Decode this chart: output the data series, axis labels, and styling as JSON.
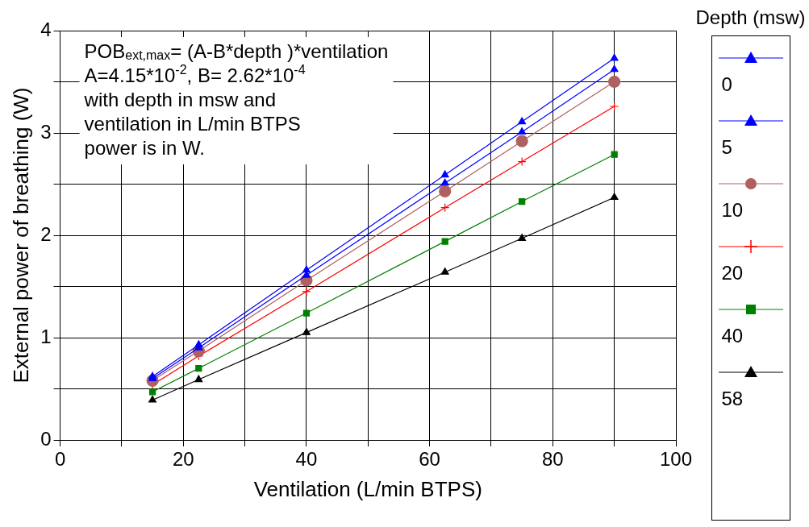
{
  "chart_data": {
    "type": "line",
    "xlabel": "Ventilation (L/min BTPS)",
    "ylabel": "External power of breathing (W)",
    "legend_title": "Depth (msw)",
    "legend": "right",
    "grid": true,
    "line_style": "solid",
    "xlim": [
      0,
      100
    ],
    "xticks": [
      0,
      {
        "value": 10,
        "label": null
      },
      20,
      {
        "value": 30,
        "label": null
      },
      40,
      {
        "value": 50,
        "label": null
      },
      60,
      {
        "value": 70,
        "label": null
      },
      80,
      {
        "value": 90,
        "label": null
      },
      100
    ],
    "ylim": [
      0,
      4
    ],
    "yticks": [
      0,
      {
        "value": 0.5,
        "label": null
      },
      1,
      {
        "value": 1.5,
        "label": null
      },
      2,
      {
        "value": 2.5,
        "label": null
      },
      3,
      {
        "value": 3.5,
        "label": null
      },
      4
    ],
    "x": [
      15,
      22.5,
      40,
      62.5,
      75,
      90
    ],
    "series": [
      {
        "name": "0",
        "color": "#0000ff",
        "marker": "triangle",
        "values": [
          0.62,
          0.93,
          1.66,
          2.59,
          3.11,
          3.73
        ]
      },
      {
        "name": "5",
        "color": "#0000ff",
        "marker": "triangle",
        "values": [
          0.6,
          0.9,
          1.61,
          2.51,
          3.01,
          3.62
        ]
      },
      {
        "name": "10",
        "color": "#b06060",
        "marker": "circle",
        "values": [
          0.58,
          0.87,
          1.56,
          2.43,
          2.92,
          3.5
        ]
      },
      {
        "name": "20",
        "color": "#ff0000",
        "marker": "cross",
        "values": [
          0.54,
          0.82,
          1.45,
          2.27,
          2.72,
          3.26
        ]
      },
      {
        "name": "40",
        "color": "#008000",
        "marker": "square",
        "values": [
          0.47,
          0.7,
          1.24,
          1.94,
          2.33,
          2.79
        ]
      },
      {
        "name": "58",
        "color": "#000000",
        "marker": "triangle",
        "values": [
          0.39,
          0.59,
          1.05,
          1.64,
          1.97,
          2.37
        ]
      }
    ],
    "annotations": [
      "POB$_{ext,max}$= (A-B*depth )*ventilation",
      "A=4.15*10$^{-2}$, B= 2.62*10$^{-4}$",
      "with depth in msw and",
      "ventilation in L/min BTPS",
      "power is in W."
    ]
  }
}
